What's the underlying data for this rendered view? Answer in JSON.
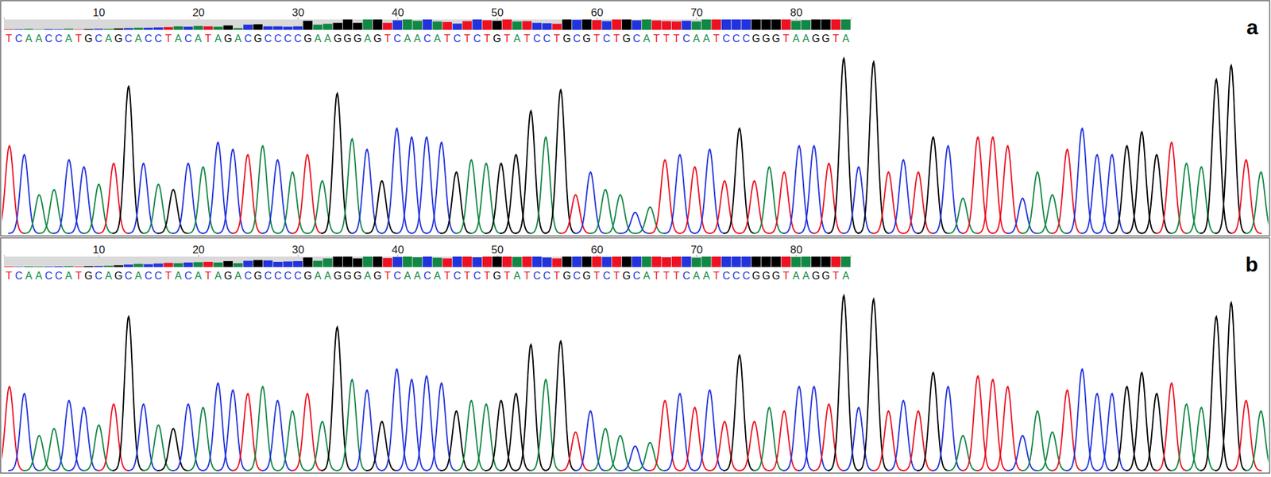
{
  "chart_data": [
    {
      "type": "chromatogram",
      "title": "a",
      "tick_labels": "x",
      "categories": [
        "T",
        "C",
        "A",
        "A",
        "C",
        "C",
        "A",
        "T",
        "G",
        "C",
        "A",
        "G",
        "C",
        "A",
        "C",
        "C",
        "T",
        "A",
        "C",
        "A",
        "T",
        "A",
        "G",
        "A",
        "C",
        "G",
        "C",
        "C",
        "C",
        "C",
        "G",
        "A",
        "A",
        "G",
        "G",
        "G",
        "A",
        "G",
        "T",
        "C",
        "A",
        "A",
        "C",
        "A",
        "T",
        "C",
        "T",
        "C",
        "T",
        "G",
        "T",
        "A",
        "T",
        "C",
        "C",
        "T",
        "G",
        "C",
        "G",
        "T",
        "C",
        "T",
        "G",
        "C",
        "A",
        "T",
        "T",
        "T",
        "C",
        "A",
        "A",
        "T",
        "C",
        "C",
        "C",
        "G",
        "G",
        "G",
        "T",
        "A",
        "A",
        "G",
        "G",
        "T",
        "A"
      ],
      "colors": [
        "#e12",
        "#23d",
        "#184",
        "#184",
        "#23d",
        "#23d",
        "#184",
        "#e12",
        "#000",
        "#23d",
        "#184",
        "#000",
        "#23d",
        "#184",
        "#23d",
        "#23d",
        "#e12",
        "#184",
        "#23d",
        "#184",
        "#e12",
        "#184",
        "#000",
        "#184",
        "#23d",
        "#000",
        "#23d",
        "#23d",
        "#23d",
        "#23d",
        "#000",
        "#184",
        "#184",
        "#000",
        "#000",
        "#000",
        "#184",
        "#000",
        "#e12",
        "#23d",
        "#184",
        "#184",
        "#23d",
        "#184",
        "#e12",
        "#23d",
        "#e12",
        "#23d",
        "#e12",
        "#000",
        "#e12",
        "#184",
        "#e12",
        "#23d",
        "#23d",
        "#e12",
        "#000",
        "#23d",
        "#000",
        "#e12",
        "#23d",
        "#e12",
        "#000",
        "#23d",
        "#184",
        "#e12",
        "#e12",
        "#e12",
        "#23d",
        "#184",
        "#184",
        "#e12",
        "#23d",
        "#23d",
        "#23d",
        "#000",
        "#000",
        "#000",
        "#e12",
        "#184",
        "#184",
        "#000",
        "#000",
        "#e12",
        "#184"
      ],
      "xlim": [
        0.5,
        85.5
      ],
      "xticks": [
        10,
        20,
        30,
        40,
        50,
        60,
        70,
        80
      ],
      "ylim": [
        0,
        100
      ],
      "y2lim": [
        0,
        60
      ],
      "series": [
        {
          "type": "line",
          "values": [
            50,
            45,
            22,
            25,
            42,
            38,
            28,
            40,
            84,
            40,
            28,
            25,
            40,
            38,
            52,
            48,
            45,
            50,
            42,
            35,
            45,
            30,
            80,
            54,
            48,
            30,
            60,
            55,
            55,
            52,
            35,
            42,
            40,
            40,
            45,
            70,
            55,
            82,
            22,
            35,
            25,
            22,
            12,
            15,
            42,
            45,
            38,
            48,
            30,
            60,
            30,
            38,
            35,
            50,
            50,
            40,
            100,
            38,
            98,
            35,
            42,
            35,
            55,
            50,
            20,
            55,
            55,
            50,
            20,
            35,
            22,
            48,
            60,
            45,
            45,
            50,
            58,
            45,
            52,
            40,
            38,
            88,
            96,
            42,
            35
          ]
        },
        {
          "type": "bar",
          "axis": "y2",
          "values": [
            3,
            3,
            5,
            2,
            4,
            3,
            6,
            2,
            4,
            6,
            5,
            8,
            10,
            12,
            12,
            14,
            16,
            20,
            18,
            22,
            20,
            18,
            25,
            10,
            30,
            32,
            20,
            20,
            18,
            20,
            52,
            30,
            35,
            40,
            60,
            40,
            60,
            60,
            40,
            55,
            60,
            52,
            60,
            48,
            45,
            36,
            50,
            60,
            55,
            52,
            60,
            48,
            50,
            40,
            38,
            35,
            60,
            58,
            60,
            56,
            50,
            60,
            60,
            55,
            60,
            54,
            50,
            48,
            52,
            48,
            60,
            60,
            60,
            60,
            60,
            60,
            60,
            60,
            60,
            52,
            56,
            60,
            60,
            60,
            60
          ]
        }
      ]
    },
    {
      "type": "chromatogram",
      "title": "b",
      "tick_labels": "x",
      "categories": [
        "T",
        "C",
        "A",
        "A",
        "C",
        "C",
        "A",
        "T",
        "G",
        "C",
        "A",
        "G",
        "C",
        "A",
        "C",
        "C",
        "T",
        "A",
        "C",
        "A",
        "T",
        "A",
        "G",
        "A",
        "C",
        "G",
        "C",
        "C",
        "C",
        "C",
        "G",
        "A",
        "A",
        "G",
        "G",
        "G",
        "A",
        "G",
        "T",
        "C",
        "A",
        "A",
        "C",
        "A",
        "T",
        "C",
        "T",
        "C",
        "T",
        "G",
        "T",
        "A",
        "T",
        "C",
        "C",
        "T",
        "G",
        "C",
        "G",
        "T",
        "C",
        "T",
        "G",
        "C",
        "A",
        "T",
        "T",
        "T",
        "C",
        "A",
        "A",
        "T",
        "C",
        "C",
        "C",
        "G",
        "G",
        "G",
        "T",
        "A",
        "A",
        "G",
        "G",
        "T",
        "A"
      ],
      "colors": [
        "#e12",
        "#23d",
        "#184",
        "#184",
        "#23d",
        "#23d",
        "#184",
        "#e12",
        "#000",
        "#23d",
        "#184",
        "#000",
        "#23d",
        "#184",
        "#23d",
        "#23d",
        "#e12",
        "#184",
        "#23d",
        "#184",
        "#e12",
        "#184",
        "#000",
        "#184",
        "#23d",
        "#000",
        "#23d",
        "#23d",
        "#23d",
        "#23d",
        "#000",
        "#184",
        "#184",
        "#000",
        "#000",
        "#000",
        "#184",
        "#000",
        "#e12",
        "#23d",
        "#184",
        "#184",
        "#23d",
        "#184",
        "#e12",
        "#23d",
        "#e12",
        "#23d",
        "#e12",
        "#000",
        "#e12",
        "#184",
        "#e12",
        "#23d",
        "#23d",
        "#e12",
        "#000",
        "#23d",
        "#000",
        "#e12",
        "#23d",
        "#e12",
        "#000",
        "#23d",
        "#184",
        "#e12",
        "#e12",
        "#e12",
        "#23d",
        "#184",
        "#184",
        "#e12",
        "#23d",
        "#23d",
        "#23d",
        "#000",
        "#000",
        "#000",
        "#e12",
        "#184",
        "#184",
        "#000",
        "#000",
        "#e12",
        "#184"
      ],
      "xlim": [
        0.5,
        85.5
      ],
      "xticks": [
        10,
        20,
        30,
        40,
        50,
        60,
        70,
        80
      ],
      "ylim": [
        0,
        100
      ],
      "y2lim": [
        0,
        60
      ],
      "series": [
        {
          "type": "line",
          "values": [
            48,
            44,
            20,
            24,
            40,
            36,
            26,
            38,
            88,
            38,
            26,
            24,
            38,
            36,
            50,
            46,
            44,
            48,
            40,
            34,
            44,
            28,
            82,
            52,
            46,
            28,
            58,
            52,
            54,
            50,
            34,
            40,
            38,
            40,
            44,
            72,
            52,
            74,
            22,
            34,
            24,
            20,
            14,
            16,
            40,
            44,
            36,
            46,
            28,
            66,
            28,
            36,
            34,
            48,
            48,
            38,
            100,
            36,
            98,
            34,
            40,
            34,
            56,
            48,
            20,
            54,
            52,
            48,
            20,
            34,
            22,
            46,
            58,
            44,
            44,
            48,
            56,
            44,
            50,
            38,
            36,
            88,
            96,
            40,
            34
          ]
        },
        {
          "type": "bar",
          "axis": "y2",
          "values": [
            3,
            2,
            4,
            3,
            3,
            4,
            5,
            3,
            5,
            6,
            8,
            10,
            14,
            18,
            16,
            20,
            24,
            22,
            26,
            28,
            30,
            26,
            34,
            22,
            36,
            40,
            38,
            30,
            32,
            34,
            55,
            36,
            50,
            60,
            60,
            50,
            60,
            60,
            52,
            58,
            60,
            56,
            60,
            54,
            50,
            60,
            60,
            56,
            60,
            60,
            60,
            58,
            60,
            60,
            55,
            50,
            60,
            60,
            60,
            60,
            58,
            60,
            60,
            60,
            60,
            60,
            56,
            60,
            60,
            54,
            60,
            60,
            60,
            60,
            60,
            60,
            60,
            60,
            60,
            58,
            60,
            60,
            60,
            60,
            60
          ]
        }
      ]
    }
  ]
}
